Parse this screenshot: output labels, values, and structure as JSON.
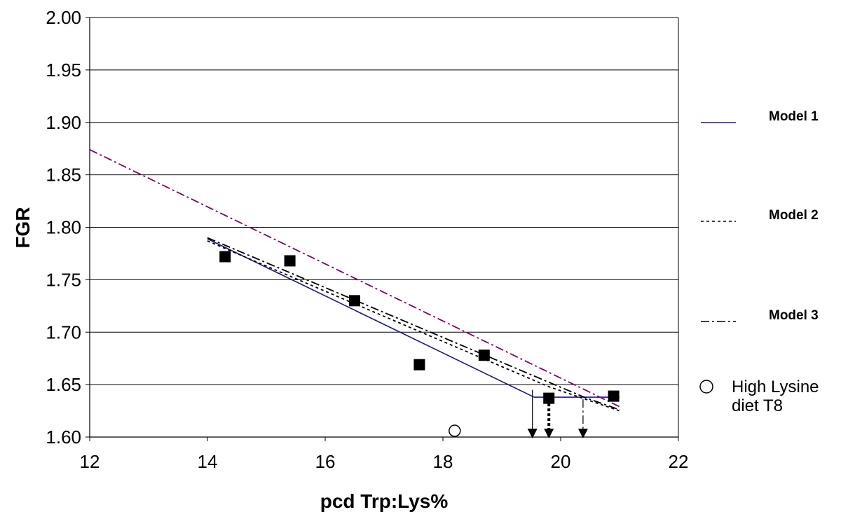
{
  "chart_data": {
    "type": "scatter",
    "title": "",
    "xlabel": "pcd Trp:Lys%",
    "ylabel": "FGR",
    "xlim": [
      12,
      22
    ],
    "ylim": [
      1.6,
      2.0
    ],
    "x_ticks": [
      "12",
      "14",
      "16",
      "18",
      "20",
      "22"
    ],
    "y_ticks": [
      "1.60",
      "1.65",
      "1.70",
      "1.75",
      "1.80",
      "1.85",
      "1.90",
      "1.95",
      "2.00"
    ],
    "grid": "horizontal",
    "legend_position": "right",
    "observed_points": [
      {
        "x": 14.3,
        "y": 1.772
      },
      {
        "x": 15.4,
        "y": 1.768
      },
      {
        "x": 16.5,
        "y": 1.73
      },
      {
        "x": 17.6,
        "y": 1.669
      },
      {
        "x": 18.7,
        "y": 1.678
      },
      {
        "x": 19.8,
        "y": 1.637
      },
      {
        "x": 20.9,
        "y": 1.639
      }
    ],
    "high_lysine_point": {
      "x": 18.2,
      "y": 1.606
    },
    "series": [
      {
        "name": "Model 1",
        "style": "solid",
        "color": "#1a1a8c",
        "x": [
          14.0,
          19.55,
          21.0
        ],
        "y": [
          1.789,
          1.638,
          1.638
        ]
      },
      {
        "name": "Model 2",
        "style": "dotted",
        "color": "#000000",
        "x": [
          14.0,
          19.8,
          21.0
        ],
        "y": [
          1.787,
          1.648,
          1.625
        ]
      },
      {
        "name": "Model 3",
        "style": "dash-dot",
        "color": "#000000",
        "x": [
          14.0,
          20.4,
          21.0
        ],
        "y": [
          1.79,
          1.638,
          1.626
        ]
      },
      {
        "name": "",
        "style": "dash-dot",
        "color": "#800060",
        "x": [
          12.0,
          21.0
        ],
        "y": [
          1.874,
          1.629
        ]
      }
    ],
    "breakpoint_arrows": [
      {
        "x": 19.52,
        "style": "solid",
        "from_y": 1.645
      },
      {
        "x": 19.8,
        "style": "bold-dotted",
        "from_y": 1.632
      },
      {
        "x": 20.38,
        "style": "dash-dot",
        "from_y": 1.636
      }
    ],
    "legend": [
      {
        "label": "Model 1",
        "style": "solid",
        "color": "#1a1a8c"
      },
      {
        "label": "Model 2",
        "style": "dotted",
        "color": "#000000"
      },
      {
        "label": "Model 3",
        "style": "dash-dot",
        "color": "#000000"
      },
      {
        "label_lines": [
          "High Lysine",
          "diet T8"
        ],
        "style": "open-circle",
        "color": "#000000"
      }
    ]
  }
}
